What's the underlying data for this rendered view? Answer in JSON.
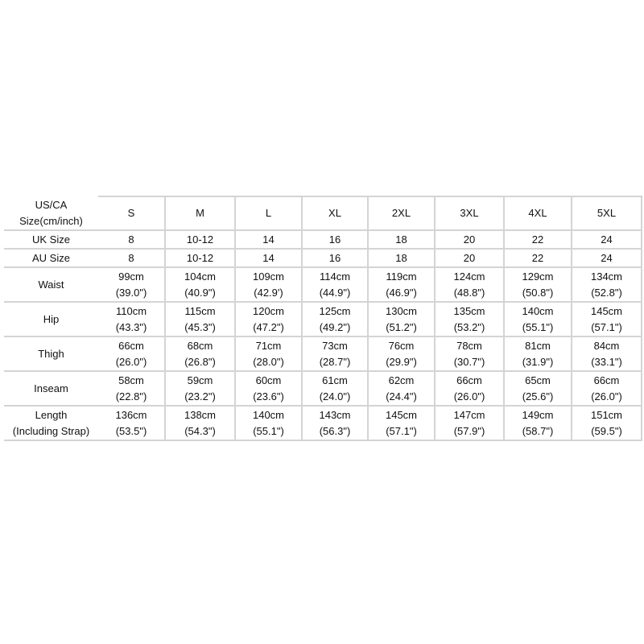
{
  "header": {
    "label_line1": "US/CA",
    "label_line2": "Size(cm/inch)",
    "sizes": [
      "S",
      "M",
      "L",
      "XL",
      "2XL",
      "3XL",
      "4XL",
      "5XL"
    ]
  },
  "rows_simple": [
    {
      "label": "UK Size",
      "values": [
        "8",
        "10-12",
        "14",
        "16",
        "18",
        "20",
        "22",
        "24"
      ]
    },
    {
      "label": "AU Size",
      "values": [
        "8",
        "10-12",
        "14",
        "16",
        "18",
        "20",
        "22",
        "24"
      ]
    }
  ],
  "rows_measure": [
    {
      "label_line1": "Waist",
      "label_line2": "",
      "cm": [
        "99cm",
        "104cm",
        "109cm",
        "114cm",
        "119cm",
        "124cm",
        "129cm",
        "134cm"
      ],
      "inch": [
        "(39.0\")",
        "(40.9\")",
        "(42.9')",
        "(44.9\")",
        "(46.9\")",
        "(48.8\")",
        "(50.8\")",
        "(52.8\")"
      ]
    },
    {
      "label_line1": "Hip",
      "label_line2": "",
      "cm": [
        "110cm",
        "115cm",
        "120cm",
        "125cm",
        "130cm",
        "135cm",
        "140cm",
        "145cm"
      ],
      "inch": [
        "(43.3\")",
        "(45.3\")",
        "(47.2\")",
        "(49.2\")",
        "(51.2\")",
        "(53.2\")",
        "(55.1\")",
        "(57.1\")"
      ]
    },
    {
      "label_line1": "Thigh",
      "label_line2": "",
      "cm": [
        "66cm",
        "68cm",
        "71cm",
        "73cm",
        "76cm",
        "78cm",
        "81cm",
        "84cm"
      ],
      "inch": [
        "(26.0\")",
        "(26.8\")",
        "(28.0\")",
        "(28.7\")",
        "(29.9\")",
        "(30.7\")",
        "(31.9\")",
        "(33.1\")"
      ]
    },
    {
      "label_line1": "Inseam",
      "label_line2": "",
      "cm": [
        "58cm",
        "59cm",
        "60cm",
        "61cm",
        "62cm",
        "66cm",
        "65cm",
        "66cm"
      ],
      "inch": [
        "(22.8\")",
        "(23.2\")",
        "(23.6\")",
        "(24.0\")",
        "(24.4\")",
        "(26.0\")",
        "(25.6\")",
        "(26.0\")"
      ]
    },
    {
      "label_line1": "Length",
      "label_line2": "(Including Strap)",
      "cm": [
        "136cm",
        "138cm",
        "140cm",
        "143cm",
        "145cm",
        "147cm",
        "149cm",
        "151cm"
      ],
      "inch": [
        "(53.5\")",
        "(54.3\")",
        "(55.1\")",
        "(56.3\")",
        "(57.1\")",
        "(57.9\")",
        "(58.7\")",
        "(59.5\")"
      ]
    }
  ]
}
